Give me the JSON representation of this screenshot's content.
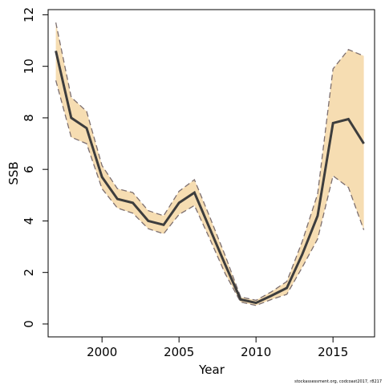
{
  "chart_data": {
    "type": "line",
    "title": "",
    "xlabel": "Year",
    "ylabel": "SSB",
    "xlim": [
      1996.5,
      2017.7
    ],
    "ylim": [
      -0.5,
      12.2
    ],
    "x_ticks": [
      2000,
      2005,
      2010,
      2015
    ],
    "y_ticks": [
      0,
      2,
      4,
      6,
      8,
      10,
      12
    ],
    "x": [
      1997,
      1998,
      1999,
      2000,
      2001,
      2002,
      2003,
      2004,
      2005,
      2006,
      2007,
      2008,
      2009,
      2010,
      2011,
      2012,
      2013,
      2014,
      2015,
      2016,
      2017
    ],
    "series": [
      {
        "values": [
          10.6,
          8.0,
          7.6,
          5.7,
          4.85,
          4.7,
          4.0,
          3.85,
          4.7,
          5.1,
          3.7,
          2.3,
          0.95,
          0.82,
          1.1,
          1.4,
          2.7,
          4.2,
          7.8,
          7.95,
          7.0
        ]
      }
    ],
    "band_upper": [
      11.7,
      8.8,
      8.25,
      6.15,
      5.25,
      5.1,
      4.4,
      4.2,
      5.15,
      5.6,
      4.15,
      2.65,
      1.05,
      0.92,
      1.25,
      1.65,
      3.2,
      5.05,
      9.9,
      10.65,
      10.4
    ],
    "band_lower": [
      9.45,
      7.25,
      7.0,
      5.25,
      4.5,
      4.3,
      3.7,
      3.5,
      4.25,
      4.6,
      3.3,
      1.95,
      0.85,
      0.72,
      0.95,
      1.15,
      2.2,
      3.3,
      5.75,
      5.3,
      3.65
    ],
    "colors": {
      "band_fill": "#f6ddb2",
      "band_border": "#7d6f6f",
      "line": "#3d3d3d"
    },
    "grid": false,
    "footnote": "stockassessment.org, codcoast2017, r8217"
  }
}
